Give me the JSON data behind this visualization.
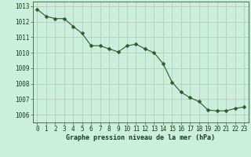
{
  "x": [
    0,
    1,
    2,
    3,
    4,
    5,
    6,
    7,
    8,
    9,
    10,
    11,
    12,
    13,
    14,
    15,
    16,
    17,
    18,
    19,
    20,
    21,
    22,
    23
  ],
  "y": [
    1012.8,
    1012.35,
    1012.2,
    1012.2,
    1011.7,
    1011.25,
    1010.45,
    1010.45,
    1010.25,
    1010.05,
    1010.45,
    1010.55,
    1010.25,
    1010.0,
    1009.3,
    1008.1,
    1007.45,
    1007.1,
    1006.85,
    1006.3,
    1006.25,
    1006.25,
    1006.4,
    1006.5
  ],
  "line_color": "#2d5a27",
  "marker_color": "#2d5a27",
  "bg_color": "#cceedd",
  "grid_color": "#aabbaa",
  "xlabel": "Graphe pression niveau de la mer (hPa)",
  "xlabel_color": "#1a3a1a",
  "ylabel_ticks": [
    1006,
    1007,
    1008,
    1009,
    1010,
    1011,
    1012,
    1013
  ],
  "xlim": [
    -0.5,
    23.5
  ],
  "ylim": [
    1005.5,
    1013.3
  ],
  "marker_size": 2.5,
  "linewidth": 0.8,
  "tick_fontsize": 5.5,
  "xlabel_fontsize": 6.0
}
